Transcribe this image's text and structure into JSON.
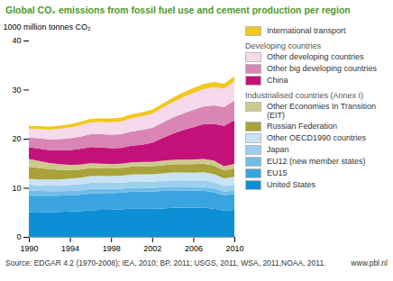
{
  "chart_data": {
    "type": "area",
    "title": "Global CO₂ emissions from fossil fuel use and cement production per region",
    "y_label": "1000 million tonnes CO₂",
    "caption": "Source: EDGAR 4.2 (1970-2008); IEA, 2010; BP, 2011; USGS, 2011, WSA, 2011,NOAA, 2011.",
    "credit": "www.pbl.nl",
    "stacked": true,
    "grid": false,
    "legend": "right",
    "x": [
      1990,
      1991,
      1992,
      1993,
      1994,
      1995,
      1996,
      1997,
      1998,
      1999,
      2000,
      2001,
      2002,
      2003,
      2004,
      2005,
      2006,
      2007,
      2008,
      2009,
      2010
    ],
    "xlim": [
      1990,
      2010
    ],
    "xticks": [
      1990,
      1994,
      1998,
      2002,
      2006,
      2010
    ],
    "ylim": [
      0,
      40
    ],
    "yticks": [
      0,
      10,
      20,
      30,
      40
    ],
    "series": [
      {
        "name": "United States",
        "group": "Industrialised countries (Annex I)",
        "color": "#0d8fd6",
        "values": [
          5.0,
          4.95,
          5.05,
          5.1,
          5.2,
          5.25,
          5.4,
          5.5,
          5.5,
          5.6,
          5.8,
          5.75,
          5.75,
          5.8,
          5.9,
          5.95,
          5.9,
          5.95,
          5.75,
          5.35,
          5.5
        ]
      },
      {
        "name": "EU15",
        "group": "Industrialised countries (Annex I)",
        "color": "#3aa4e0",
        "values": [
          3.4,
          3.45,
          3.35,
          3.3,
          3.3,
          3.35,
          3.45,
          3.4,
          3.45,
          3.4,
          3.4,
          3.5,
          3.45,
          3.55,
          3.55,
          3.5,
          3.5,
          3.45,
          3.4,
          3.15,
          3.2
        ]
      },
      {
        "name": "EU12 (new member states)",
        "group": "Industrialised countries (Annex I)",
        "color": "#6fbde8",
        "values": [
          1.1,
          0.95,
          0.9,
          0.9,
          0.88,
          0.9,
          0.92,
          0.88,
          0.84,
          0.8,
          0.78,
          0.78,
          0.76,
          0.78,
          0.78,
          0.78,
          0.8,
          0.8,
          0.78,
          0.72,
          0.74
        ]
      },
      {
        "name": "Japan",
        "group": "Industrialised countries (Annex I)",
        "color": "#9dcfef",
        "values": [
          1.15,
          1.17,
          1.18,
          1.16,
          1.22,
          1.23,
          1.25,
          1.25,
          1.2,
          1.24,
          1.26,
          1.25,
          1.28,
          1.28,
          1.3,
          1.3,
          1.28,
          1.32,
          1.25,
          1.15,
          1.2
        ]
      },
      {
        "name": "Other OECD1990 countries",
        "group": "Industrialised countries (Annex I)",
        "color": "#c9e3f4",
        "values": [
          1.2,
          1.2,
          1.22,
          1.25,
          1.27,
          1.3,
          1.35,
          1.38,
          1.4,
          1.43,
          1.47,
          1.48,
          1.5,
          1.53,
          1.57,
          1.6,
          1.6,
          1.65,
          1.63,
          1.55,
          1.6
        ]
      },
      {
        "name": "Russian Federation",
        "group": "Industrialised countries (Annex I)",
        "color": "#a9a23a",
        "values": [
          2.4,
          2.3,
          2.1,
          1.95,
          1.75,
          1.7,
          1.65,
          1.55,
          1.55,
          1.58,
          1.6,
          1.62,
          1.62,
          1.66,
          1.66,
          1.68,
          1.72,
          1.72,
          1.75,
          1.6,
          1.7
        ]
      },
      {
        "name": "Other Economies In Transition (EIT)",
        "group": "Industrialised countries (Annex I)",
        "color": "#cdc98f",
        "values": [
          1.6,
          1.45,
          1.25,
          1.15,
          1.05,
          1.0,
          1.0,
          0.95,
          0.92,
          0.88,
          0.88,
          0.9,
          0.9,
          0.92,
          0.93,
          0.94,
          0.96,
          0.97,
          0.98,
          0.88,
          0.92
        ]
      },
      {
        "name": "China",
        "group": "Developing countries",
        "color": "#c4127a",
        "values": [
          2.4,
          2.5,
          2.6,
          2.8,
          3.0,
          3.2,
          3.3,
          3.3,
          3.2,
          3.2,
          3.4,
          3.5,
          3.9,
          4.6,
          5.3,
          6.0,
          6.6,
          7.1,
          7.5,
          8.2,
          8.9
        ]
      },
      {
        "name": "Other big developing countries",
        "group": "Developing countries",
        "color": "#d985b5",
        "values": [
          2.0,
          2.1,
          2.2,
          2.3,
          2.4,
          2.5,
          2.6,
          2.7,
          2.75,
          2.8,
          2.9,
          3.0,
          3.05,
          3.15,
          3.3,
          3.4,
          3.5,
          3.6,
          3.75,
          3.85,
          4.0
        ]
      },
      {
        "name": "Other developing countries",
        "group": "Developing countries",
        "color": "#f6d9ea",
        "values": [
          1.8,
          1.9,
          2.0,
          2.1,
          2.2,
          2.3,
          2.4,
          2.5,
          2.55,
          2.6,
          2.7,
          2.8,
          2.9,
          3.0,
          3.15,
          3.3,
          3.45,
          3.55,
          3.7,
          3.75,
          3.9
        ]
      },
      {
        "name": "International transport",
        "color": "#f2c71f",
        "values": [
          0.6,
          0.62,
          0.64,
          0.65,
          0.67,
          0.7,
          0.72,
          0.75,
          0.76,
          0.8,
          0.83,
          0.8,
          0.82,
          0.84,
          0.9,
          0.95,
          1.0,
          1.05,
          1.05,
          1.0,
          1.05
        ]
      }
    ]
  }
}
